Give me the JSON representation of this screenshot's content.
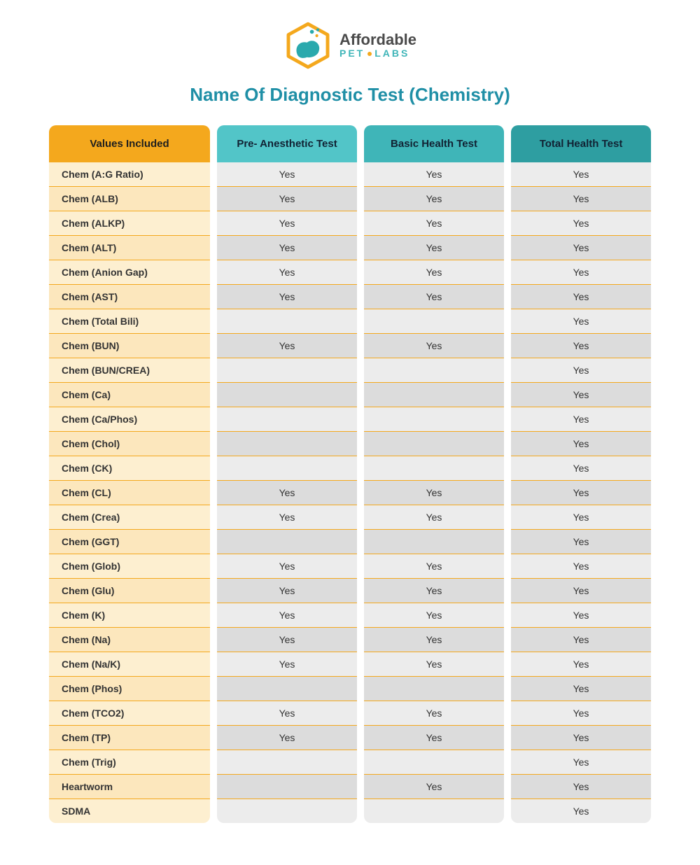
{
  "brand": {
    "top": "Affordable",
    "bottom_left": "PET",
    "bottom_right": "LABS"
  },
  "page_title": "Name Of Diagnostic Test (Chemistry)",
  "table": {
    "columns": [
      {
        "label": "Values Included",
        "header_bg": "#f4a81d",
        "header_color": "#1e1e1e",
        "cell_bg": "#fdefd0",
        "cell_bg_alt": "#fce7bd"
      },
      {
        "label": "Pre- Anesthetic Test",
        "header_bg": "#52c5c8",
        "header_color": "#123",
        "cell_bg": "#ececec",
        "cell_bg_alt": "#dcdcdc"
      },
      {
        "label": "Basic Health Test",
        "header_bg": "#3fb5b8",
        "header_color": "#123",
        "cell_bg": "#ececec",
        "cell_bg_alt": "#dcdcdc"
      },
      {
        "label": "Total Health Test",
        "header_bg": "#2e9ea1",
        "header_color": "#123",
        "cell_bg": "#ececec",
        "cell_bg_alt": "#dcdcdc"
      }
    ],
    "row_border_color": "#f4a81d",
    "rows": [
      {
        "label": "Chem (A:G Ratio)",
        "c1": "Yes",
        "c2": "Yes",
        "c3": "Yes"
      },
      {
        "label": "Chem (ALB)",
        "c1": "Yes",
        "c2": "Yes",
        "c3": "Yes"
      },
      {
        "label": "Chem (ALKP)",
        "c1": "Yes",
        "c2": "Yes",
        "c3": "Yes"
      },
      {
        "label": "Chem (ALT)",
        "c1": "Yes",
        "c2": "Yes",
        "c3": "Yes"
      },
      {
        "label": "Chem (Anion Gap)",
        "c1": "Yes",
        "c2": "Yes",
        "c3": "Yes"
      },
      {
        "label": "Chem (AST)",
        "c1": "Yes",
        "c2": "Yes",
        "c3": "Yes"
      },
      {
        "label": "Chem (Total Bili)",
        "c1": "",
        "c2": "",
        "c3": "Yes"
      },
      {
        "label": "Chem (BUN)",
        "c1": "Yes",
        "c2": "Yes",
        "c3": "Yes"
      },
      {
        "label": "Chem (BUN/CREA)",
        "c1": "",
        "c2": "",
        "c3": "Yes"
      },
      {
        "label": "Chem (Ca)",
        "c1": "",
        "c2": "",
        "c3": "Yes"
      },
      {
        "label": "Chem (Ca/Phos)",
        "c1": "",
        "c2": "",
        "c3": "Yes"
      },
      {
        "label": "Chem (Chol)",
        "c1": "",
        "c2": "",
        "c3": "Yes"
      },
      {
        "label": "Chem (CK)",
        "c1": "",
        "c2": "",
        "c3": "Yes"
      },
      {
        "label": "Chem (CL)",
        "c1": "Yes",
        "c2": "Yes",
        "c3": "Yes"
      },
      {
        "label": "Chem (Crea)",
        "c1": "Yes",
        "c2": "Yes",
        "c3": "Yes"
      },
      {
        "label": "Chem (GGT)",
        "c1": "",
        "c2": "",
        "c3": "Yes"
      },
      {
        "label": "Chem (Glob)",
        "c1": "Yes",
        "c2": "Yes",
        "c3": "Yes"
      },
      {
        "label": "Chem (Glu)",
        "c1": "Yes",
        "c2": "Yes",
        "c3": "Yes"
      },
      {
        "label": "Chem (K)",
        "c1": "Yes",
        "c2": "Yes",
        "c3": "Yes"
      },
      {
        "label": "Chem (Na)",
        "c1": "Yes",
        "c2": "Yes",
        "c3": "Yes"
      },
      {
        "label": "Chem (Na/K)",
        "c1": "Yes",
        "c2": "Yes",
        "c3": "Yes"
      },
      {
        "label": "Chem (Phos)",
        "c1": "",
        "c2": "",
        "c3": "Yes"
      },
      {
        "label": "Chem (TCO2)",
        "c1": "Yes",
        "c2": "Yes",
        "c3": "Yes"
      },
      {
        "label": "Chem (TP)",
        "c1": "Yes",
        "c2": "Yes",
        "c3": "Yes"
      },
      {
        "label": "Chem (Trig)",
        "c1": "",
        "c2": "",
        "c3": "Yes"
      },
      {
        "label": "Heartworm",
        "c1": "",
        "c2": "Yes",
        "c3": "Yes"
      },
      {
        "label": "SDMA",
        "c1": "",
        "c2": "",
        "c3": "Yes"
      }
    ]
  }
}
